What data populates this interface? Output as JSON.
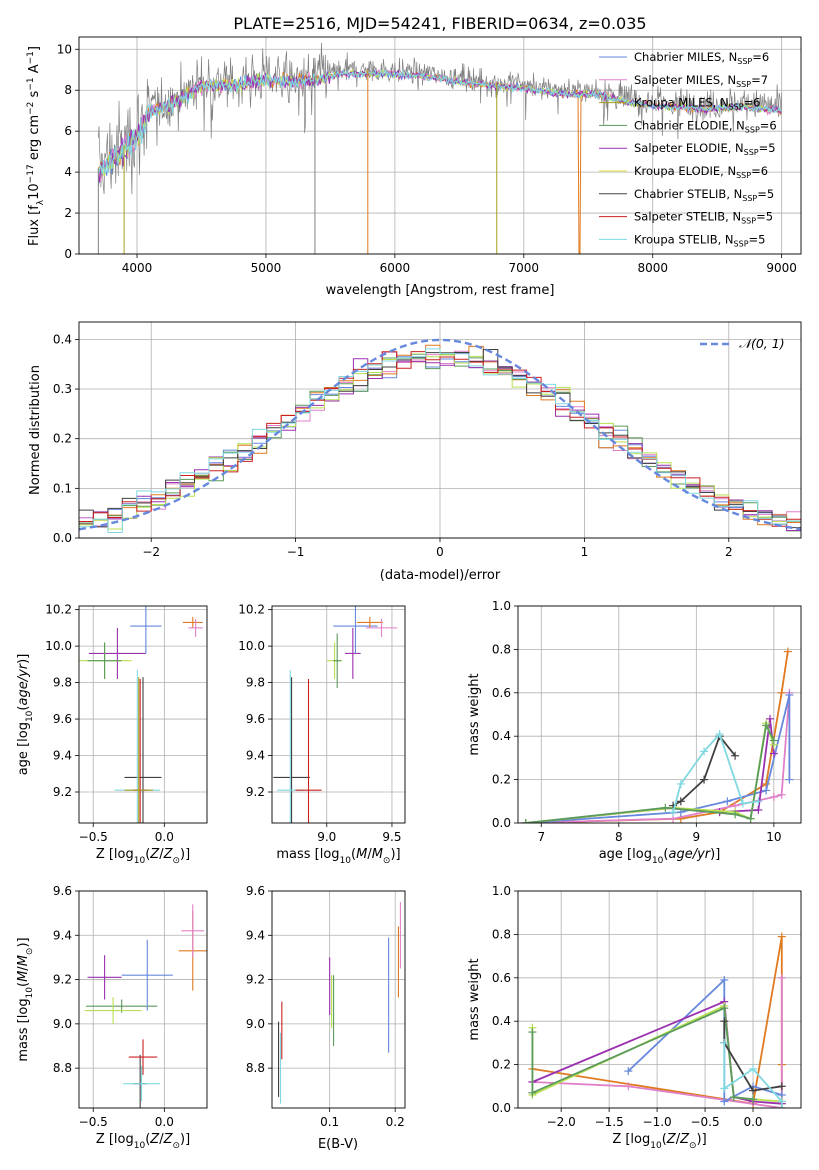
{
  "title": "PLATE=2516, MJD=54241, FIBERID=0634, z=0.035",
  "colors": {
    "Chabrier MILES": "#6688dd",
    "Salpeter MILES": "#e080c8",
    "Kroupa MILES": "#a8a020",
    "Chabrier ELODIE": "#5a9a5a",
    "Salpeter ELODIE": "#9a30b0",
    "Kroupa ELODIE": "#e0e040",
    "Chabrier STELIB": "#404040",
    "Salpeter STELIB": "#cc2020",
    "Kroupa STELIB": "#80d8e0",
    "orange": "#e07a20",
    "lime": "#b8e050",
    "gray": "#808080"
  },
  "chart_data": [
    {
      "id": "spectrum",
      "type": "line",
      "xlabel": "wavelength [Angstrom, rest frame]",
      "ylabel_parts": [
        "Flux [f",
        "λ",
        "10",
        "−17",
        " erg cm",
        "−2",
        " s",
        "−1",
        " A",
        "−1",
        "]"
      ],
      "xlim": [
        3550,
        9150
      ],
      "ylim": [
        0,
        10.6
      ],
      "xticks": [
        4000,
        5000,
        6000,
        7000,
        8000,
        9000
      ],
      "yticks": [
        0,
        2,
        4,
        6,
        8,
        10
      ],
      "legend": [
        "Chabrier MILES, N",
        "Salpeter MILES, N",
        "Kroupa MILES, N",
        "Chabrier ELODIE, N",
        "Salpeter ELODIE, N",
        "Kroupa ELODIE, N",
        "Chabrier STELIB, N",
        "Salpeter STELIB, N",
        "Kroupa STELIB, N"
      ],
      "legend_sub": "SSP",
      "legend_n": [
        "=6",
        "=7",
        "=6",
        "=6",
        "=5",
        "=6",
        "=5",
        "=5",
        "=5"
      ],
      "continuum": [
        [
          3700,
          4.2
        ],
        [
          3800,
          4.8
        ],
        [
          3900,
          5.3
        ],
        [
          4000,
          6.0
        ],
        [
          4100,
          7.1
        ],
        [
          4300,
          7.6
        ],
        [
          4500,
          8.4
        ],
        [
          4800,
          8.5
        ],
        [
          5000,
          8.7
        ],
        [
          5300,
          8.6
        ],
        [
          5600,
          9.0
        ],
        [
          5900,
          9.0
        ],
        [
          6200,
          8.9
        ],
        [
          6500,
          8.6
        ],
        [
          6800,
          8.4
        ],
        [
          7000,
          8.3
        ],
        [
          7300,
          8.0
        ],
        [
          7600,
          8.0
        ],
        [
          7800,
          7.6
        ],
        [
          8100,
          7.4
        ],
        [
          8400,
          7.3
        ],
        [
          8700,
          7.4
        ],
        [
          9000,
          7.2
        ]
      ]
    },
    {
      "id": "residuals",
      "type": "histogram",
      "xlabel": "(data-model)/error",
      "ylabel": "Normed distribution",
      "xlim": [
        -2.5,
        2.5
      ],
      "ylim": [
        0,
        0.435
      ],
      "xticks": [
        -2,
        -1,
        0,
        1,
        2
      ],
      "yticks": [
        0.0,
        0.1,
        0.2,
        0.3,
        0.4
      ],
      "legend": "𝒩(0, 1)",
      "bin_width": 0.1
    },
    {
      "id": "z-age",
      "type": "scatter",
      "xlabel": "Z [log",
      "ylabel": "age  [log",
      "xlim": [
        -0.6,
        0.3
      ],
      "ylim": [
        9.03,
        10.22
      ],
      "xticks": [
        -0.5,
        0.0
      ],
      "yticks": [
        9.2,
        9.4,
        9.6,
        9.8,
        10.0,
        10.2
      ],
      "points": [
        {
          "c": "#404040",
          "x": -0.15,
          "y": 9.28,
          "ex": 0.13,
          "ey": 0.55
        },
        {
          "c": "#80d8e0",
          "x": -0.19,
          "y": 9.21,
          "ex": 0.16,
          "ey": 0.66
        },
        {
          "c": "#cc2020",
          "x": -0.17,
          "y": 9.21,
          "ex": 0.05,
          "ey": 0.61
        },
        {
          "c": "#a8a020",
          "x": -0.18,
          "y": 9.21,
          "ex": 0.1,
          "ey": 0.62
        },
        {
          "c": "#9a30b0",
          "x": -0.33,
          "y": 9.96,
          "ex": 0.2,
          "ey": 0.14
        },
        {
          "c": "#b8e050",
          "x": -0.42,
          "y": 9.92,
          "ex": 0.19,
          "ey": 0.1
        },
        {
          "c": "#5a9a5a",
          "x": -0.42,
          "y": 9.92,
          "ex": 0.12,
          "ey": 0.1
        },
        {
          "c": "#6688dd",
          "x": -0.13,
          "y": 10.11,
          "ex": 0.11,
          "ey": 0.15
        },
        {
          "c": "#e07a20",
          "x": 0.2,
          "y": 10.13,
          "ex": 0.07,
          "ey": 0.03
        },
        {
          "c": "#e080c8",
          "x": 0.22,
          "y": 10.1,
          "ex": 0.05,
          "ey": 0.05
        }
      ]
    },
    {
      "id": "mass-age",
      "type": "scatter",
      "xlabel": "mass [log",
      "xlim": [
        8.58,
        9.6
      ],
      "ylim": [
        9.03,
        10.22
      ],
      "xticks": [
        9.0,
        9.5
      ],
      "yticks": [
        9.2,
        9.4,
        9.6,
        9.8,
        10.0,
        10.2
      ],
      "points": [
        {
          "c": "#404040",
          "x": 8.73,
          "y": 9.28,
          "ex": 0.14,
          "ey": 0.55
        },
        {
          "c": "#80d8e0",
          "x": 8.72,
          "y": 9.21,
          "ex": 0.1,
          "ey": 0.66
        },
        {
          "c": "#cc2020",
          "x": 8.86,
          "y": 9.21,
          "ex": 0.1,
          "ey": 0.61
        },
        {
          "c": "#9a30b0",
          "x": 9.2,
          "y": 9.96,
          "ex": 0.06,
          "ey": 0.14
        },
        {
          "c": "#b8e050",
          "x": 9.06,
          "y": 9.92,
          "ex": 0.06,
          "ey": 0.1
        },
        {
          "c": "#5a9a5a",
          "x": 9.08,
          "y": 9.92,
          "ex": 0.03,
          "ey": 0.15
        },
        {
          "c": "#6688dd",
          "x": 9.22,
          "y": 10.11,
          "ex": 0.17,
          "ey": 0.15
        },
        {
          "c": "#e07a20",
          "x": 9.33,
          "y": 10.13,
          "ex": 0.1,
          "ey": 0.03
        },
        {
          "c": "#e080c8",
          "x": 9.42,
          "y": 10.1,
          "ex": 0.12,
          "ey": 0.05
        }
      ]
    },
    {
      "id": "age-weight",
      "type": "line",
      "xlabel": "age  [log",
      "ylabel": "mass weight",
      "xlim": [
        6.7,
        10.35
      ],
      "ylim": [
        0,
        1.0
      ],
      "xticks": [
        7,
        8,
        9,
        10
      ],
      "yticks": [
        0.0,
        0.2,
        0.4,
        0.6,
        0.8,
        1.0
      ],
      "series": [
        {
          "c": "#e07a20",
          "x": [
            6.8,
            8.8,
            9.3,
            9.9,
            10.1,
            10.18
          ],
          "y": [
            0.0,
            0.02,
            0.05,
            0.18,
            0.6,
            0.79
          ]
        },
        {
          "c": "#e080c8",
          "x": [
            6.8,
            8.7,
            9.5,
            10.0,
            10.1,
            10.2
          ],
          "y": [
            0.0,
            0.02,
            0.08,
            0.12,
            0.13,
            0.6
          ]
        },
        {
          "c": "#6688dd",
          "x": [
            6.8,
            8.8,
            9.4,
            9.9,
            10.2,
            10.2
          ],
          "y": [
            0.0,
            0.05,
            0.1,
            0.15,
            0.59,
            0.2
          ]
        },
        {
          "c": "#9a30b0",
          "x": [
            6.8,
            8.7,
            9.3,
            9.8,
            9.95,
            10.0
          ],
          "y": [
            0.0,
            0.07,
            0.05,
            0.06,
            0.48,
            0.32
          ]
        },
        {
          "c": "#b8e050",
          "x": [
            6.8,
            8.7,
            9.5,
            9.7,
            9.9,
            10.0
          ],
          "y": [
            0.0,
            0.07,
            0.05,
            0.02,
            0.46,
            0.36
          ]
        },
        {
          "c": "#5a9a5a",
          "x": [
            6.8,
            8.6,
            9.5,
            9.7,
            9.9,
            10.0
          ],
          "y": [
            0.0,
            0.07,
            0.04,
            0.02,
            0.45,
            0.38
          ]
        },
        {
          "c": "#404040",
          "x": [
            8.7,
            8.8,
            9.1,
            9.3,
            9.5
          ],
          "y": [
            0.08,
            0.1,
            0.2,
            0.4,
            0.31
          ]
        },
        {
          "c": "#80d8e0",
          "x": [
            8.7,
            8.8,
            9.1,
            9.3,
            9.6,
            9.8
          ],
          "y": [
            0.05,
            0.18,
            0.33,
            0.41,
            0.09,
            0.1
          ]
        }
      ]
    },
    {
      "id": "z-mass",
      "type": "scatter",
      "xlabel": "Z [log",
      "ylabel": "mass [log",
      "xlim": [
        -0.6,
        0.3
      ],
      "ylim": [
        8.62,
        9.6
      ],
      "xticks": [
        -0.5,
        0.0
      ],
      "yticks": [
        8.8,
        9.0,
        9.2,
        9.4,
        9.6
      ],
      "points": [
        {
          "c": "#404040",
          "x": -0.17,
          "y": 8.73,
          "ex": 0.05,
          "ey": 0.13
        },
        {
          "c": "#80d8e0",
          "x": -0.16,
          "y": 8.73,
          "ex": 0.13,
          "ey": 0.08
        },
        {
          "c": "#cc2020",
          "x": -0.15,
          "y": 8.85,
          "ex": 0.1,
          "ey": 0.08
        },
        {
          "c": "#5a9a5a",
          "x": -0.3,
          "y": 9.08,
          "ex": 0.25,
          "ey": 0.03
        },
        {
          "c": "#b8e050",
          "x": -0.36,
          "y": 9.06,
          "ex": 0.2,
          "ey": 0.06
        },
        {
          "c": "#9a30b0",
          "x": -0.42,
          "y": 9.21,
          "ex": 0.12,
          "ey": 0.1
        },
        {
          "c": "#6688dd",
          "x": -0.12,
          "y": 9.22,
          "ex": 0.18,
          "ey": 0.16
        },
        {
          "c": "#e07a20",
          "x": 0.2,
          "y": 9.33,
          "ex": 0.1,
          "ey": 0.18
        },
        {
          "c": "#e080c8",
          "x": 0.2,
          "y": 9.42,
          "ex": 0.08,
          "ey": 0.12
        }
      ]
    },
    {
      "id": "ebv-mass",
      "type": "scatter",
      "xlabel": "E(B-V)",
      "xlim": [
        0.012,
        0.215
      ],
      "ylim": [
        8.62,
        9.6
      ],
      "xticks": [
        0.1,
        0.2
      ],
      "yticks": [
        8.8,
        9.0,
        9.2,
        9.4,
        9.6
      ],
      "points": [
        {
          "c": "#404040",
          "x": 0.022,
          "y": 8.84,
          "ex": 0,
          "ey": 0.17
        },
        {
          "c": "#80d8e0",
          "x": 0.025,
          "y": 8.8,
          "ex": 0,
          "ey": 0.16
        },
        {
          "c": "#cc2020",
          "x": 0.027,
          "y": 8.97,
          "ex": 0,
          "ey": 0.13
        },
        {
          "c": "#9a30b0",
          "x": 0.1,
          "y": 9.17,
          "ex": 0,
          "ey": 0.13
        },
        {
          "c": "#b8e050",
          "x": 0.103,
          "y": 9.1,
          "ex": 0,
          "ey": 0.12
        },
        {
          "c": "#5a9a5a",
          "x": 0.106,
          "y": 9.06,
          "ex": 0,
          "ey": 0.16
        },
        {
          "c": "#6688dd",
          "x": 0.19,
          "y": 9.13,
          "ex": 0,
          "ey": 0.26
        },
        {
          "c": "#e07a20",
          "x": 0.205,
          "y": 9.28,
          "ex": 0,
          "ey": 0.16
        },
        {
          "c": "#e080c8",
          "x": 0.208,
          "y": 9.4,
          "ex": 0,
          "ey": 0.15
        }
      ]
    },
    {
      "id": "z-weight",
      "type": "line",
      "xlabel": "Z [log",
      "ylabel": "mass weight",
      "xlim": [
        -2.45,
        0.5
      ],
      "ylim": [
        0,
        1.0
      ],
      "xticks": [
        -2.0,
        -1.5,
        -1.0,
        -0.5,
        0.0
      ],
      "yticks": [
        0.0,
        0.2,
        0.4,
        0.6,
        0.8,
        1.0
      ],
      "series": [
        {
          "c": "#e07a20",
          "x": [
            -2.3,
            0.0,
            0.3,
            0.3,
            0.3
          ],
          "y": [
            0.18,
            0.02,
            0.79,
            0.2,
            0.0
          ]
        },
        {
          "c": "#e080c8",
          "x": [
            -2.3,
            -1.3,
            0.3,
            0.3
          ],
          "y": [
            0.12,
            0.1,
            0.0,
            0.6
          ]
        },
        {
          "c": "#6688dd",
          "x": [
            -1.3,
            -0.3,
            -0.3,
            0.0,
            0.3
          ],
          "y": [
            0.17,
            0.59,
            0.03,
            0.1,
            0.06
          ]
        },
        {
          "c": "#9a30b0",
          "x": [
            -2.3,
            -0.3,
            -0.2,
            0.0,
            0.3
          ],
          "y": [
            0.12,
            0.49,
            0.05,
            0.03,
            0.02
          ]
        },
        {
          "c": "#b8e050",
          "x": [
            -2.3,
            -2.3,
            -0.3,
            -0.2,
            0.0,
            0.3
          ],
          "y": [
            0.37,
            0.06,
            0.47,
            0.05,
            0.04,
            0.03
          ]
        },
        {
          "c": "#5a9a5a",
          "x": [
            -2.3,
            -2.3,
            -0.3,
            -0.2,
            0.0
          ],
          "y": [
            0.35,
            0.07,
            0.46,
            0.05,
            0.04
          ]
        },
        {
          "c": "#404040",
          "x": [
            -0.3,
            -0.3,
            0.0,
            0.3
          ],
          "y": [
            0.4,
            0.3,
            0.08,
            0.1
          ]
        },
        {
          "c": "#80d8e0",
          "x": [
            -0.3,
            -0.3,
            0.0,
            0.3,
            0.3
          ],
          "y": [
            0.3,
            0.09,
            0.18,
            0.03,
            0.0
          ]
        }
      ]
    }
  ]
}
